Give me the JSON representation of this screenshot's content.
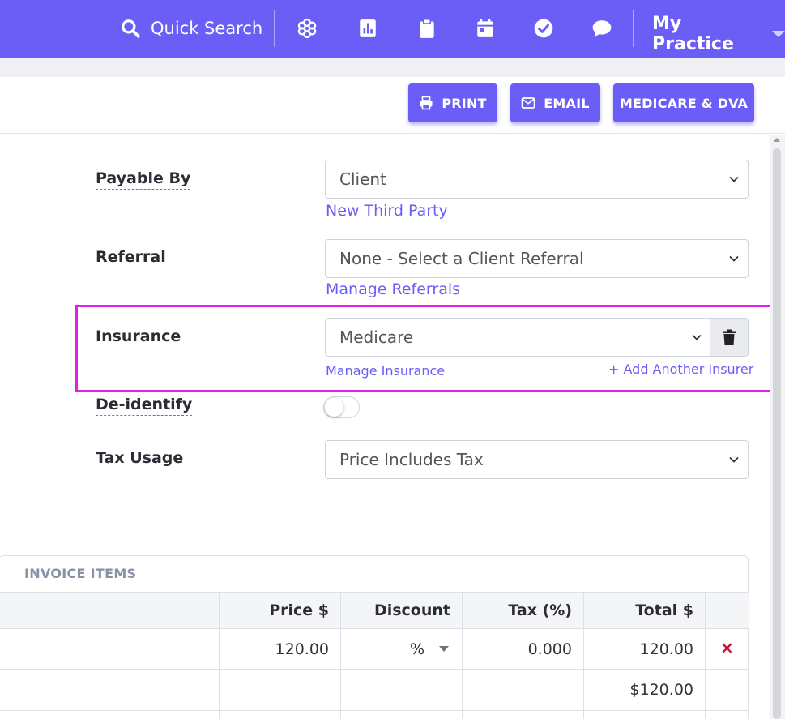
{
  "nav": {
    "search_label": "Quick Search",
    "icons": [
      "flower-icon",
      "bar-chart-icon",
      "clipboard-icon",
      "calendar-icon",
      "check-circle-icon",
      "chat-icon"
    ],
    "practice_label": "My Practice"
  },
  "toolbar": {
    "print_label": "PRINT",
    "email_label": "EMAIL",
    "medicare_label": "MEDICARE & DVA"
  },
  "form": {
    "payable_by": {
      "label": "Payable By",
      "value": "Client",
      "link": "New Third Party"
    },
    "referral": {
      "label": "Referral",
      "value": "None - Select a Client Referral",
      "link": "Manage Referrals"
    },
    "insurance": {
      "label": "Insurance",
      "value": "Medicare",
      "manage_link": "Manage Insurance",
      "add_link": "+ Add Another Insurer"
    },
    "deidentify": {
      "label": "De-identify",
      "on": false
    },
    "tax_usage": {
      "label": "Tax Usage",
      "value": "Price Includes Tax"
    }
  },
  "invoice": {
    "title": "INVOICE ITEMS",
    "columns": [
      "Price $",
      "Discount",
      "Tax (%)",
      "Total $"
    ],
    "row": {
      "price": "120.00",
      "discount": "%",
      "tax": "0.000",
      "total": "120.00",
      "delete": "×"
    },
    "grand_total": "$120.00"
  },
  "colors": {
    "accent": "#6a5ef7",
    "highlight": "#e020e8",
    "danger": "#c8143c"
  }
}
